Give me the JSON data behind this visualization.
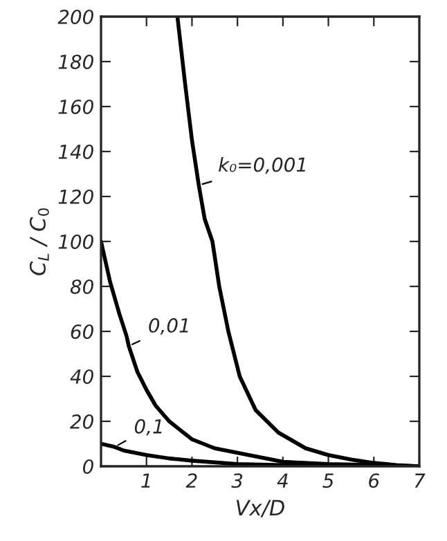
{
  "chart_data": {
    "type": "line",
    "xlabel": "Vx/D",
    "ylabel": "C$_{L}$ / C$_{0}$",
    "xlim": [
      0,
      7
    ],
    "ylim": [
      0,
      200
    ],
    "xticks": [
      1,
      2,
      3,
      4,
      5,
      6,
      7
    ],
    "yticks": [
      0,
      20,
      40,
      60,
      80,
      100,
      120,
      140,
      160,
      180,
      200
    ],
    "marker": "none",
    "line_style": "solid",
    "series": [
      {
        "color": "#000000",
        "x": [
          1.68,
          1.85,
          2.0,
          2.15,
          2.28,
          2.45,
          2.6,
          2.8,
          3.05,
          3.4,
          3.9,
          4.5,
          5,
          5.5,
          6,
          6.5,
          7
        ],
        "values": [
          200,
          170,
          145,
          125,
          110,
          100,
          80,
          60,
          40,
          25,
          15,
          8,
          5,
          3,
          1.5,
          0.5,
          0
        ]
      },
      {
        "color": "#000000",
        "x": [
          0,
          0.2,
          0.4,
          0.56,
          0.61,
          0.8,
          1,
          1.2,
          1.5,
          2,
          2.5,
          3,
          4,
          5,
          6,
          7
        ],
        "values": [
          100,
          82,
          68,
          58,
          53.5,
          42,
          34,
          27,
          20,
          12,
          8,
          6,
          2,
          1,
          0.5,
          0
        ]
      },
      {
        "color": "#000000",
        "x": [
          0,
          0.3,
          0.5,
          1,
          1.5,
          2,
          3,
          4,
          5,
          6,
          7
        ],
        "values": [
          10,
          8.6,
          7,
          5,
          3.5,
          2.5,
          1,
          0.5,
          0.2,
          0,
          0
        ]
      }
    ],
    "annotations": [
      {
        "text": "k₀=0,001",
        "x": 2.15,
        "y": 125
      },
      {
        "text": "0,01",
        "x": 0.61,
        "y": 53.5
      },
      {
        "text": "0,1",
        "x": 0.3,
        "y": 8.6
      }
    ]
  }
}
